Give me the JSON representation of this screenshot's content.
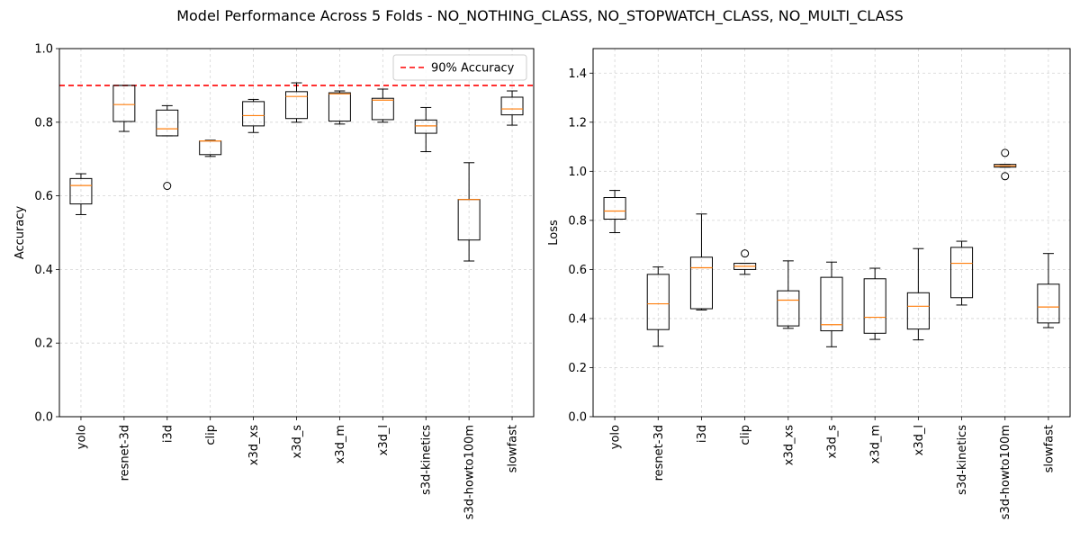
{
  "suptitle": "Model Performance Across 5 Folds - NO_NOTHING_CLASS, NO_STOPWATCH_CLASS, NO_MULTI_CLASS",
  "chart_data": [
    {
      "type": "box",
      "ylabel": "Accuracy",
      "xlabel": "",
      "ylim": [
        0,
        1.0
      ],
      "yticks": [
        0.0,
        0.2,
        0.4,
        0.6,
        0.8,
        1.0
      ],
      "grid": true,
      "legend_position": "upper-right",
      "reference_line": {
        "y": 0.9,
        "label": "90% Accuracy",
        "color": "#ff0000",
        "style": "dashed"
      },
      "categories": [
        "yolo",
        "resnet-3d",
        "i3d",
        "clip",
        "x3d_xs",
        "x3d_s",
        "x3d_m",
        "x3d_l",
        "s3d-kinetics",
        "s3d-howto100m",
        "slowfast"
      ],
      "boxes": [
        {
          "whisker_low": 0.549,
          "q1": 0.578,
          "median": 0.628,
          "q3": 0.647,
          "whisker_high": 0.66,
          "outliers": []
        },
        {
          "whisker_low": 0.775,
          "q1": 0.802,
          "median": 0.848,
          "q3": 0.9,
          "whisker_high": 0.9,
          "outliers": []
        },
        {
          "whisker_low": 0.763,
          "q1": 0.763,
          "median": 0.782,
          "q3": 0.833,
          "whisker_high": 0.845,
          "outliers": [
            0.627
          ]
        },
        {
          "whisker_low": 0.707,
          "q1": 0.712,
          "median": 0.749,
          "q3": 0.749,
          "whisker_high": 0.751,
          "outliers": []
        },
        {
          "whisker_low": 0.772,
          "q1": 0.79,
          "median": 0.818,
          "q3": 0.856,
          "whisker_high": 0.862,
          "outliers": []
        },
        {
          "whisker_low": 0.8,
          "q1": 0.81,
          "median": 0.87,
          "q3": 0.883,
          "whisker_high": 0.907,
          "outliers": []
        },
        {
          "whisker_low": 0.795,
          "q1": 0.803,
          "median": 0.877,
          "q3": 0.88,
          "whisker_high": 0.885,
          "outliers": []
        },
        {
          "whisker_low": 0.8,
          "q1": 0.807,
          "median": 0.86,
          "q3": 0.865,
          "whisker_high": 0.89,
          "outliers": []
        },
        {
          "whisker_low": 0.72,
          "q1": 0.77,
          "median": 0.79,
          "q3": 0.806,
          "whisker_high": 0.84,
          "outliers": []
        },
        {
          "whisker_low": 0.423,
          "q1": 0.48,
          "median": 0.59,
          "q3": 0.59,
          "whisker_high": 0.69,
          "outliers": []
        },
        {
          "whisker_low": 0.792,
          "q1": 0.82,
          "median": 0.836,
          "q3": 0.868,
          "whisker_high": 0.885,
          "outliers": []
        }
      ]
    },
    {
      "type": "box",
      "ylabel": "Loss",
      "xlabel": "",
      "ylim": [
        0,
        1.5
      ],
      "yticks": [
        0.0,
        0.2,
        0.4,
        0.6,
        0.8,
        1.0,
        1.2,
        1.4
      ],
      "grid": true,
      "categories": [
        "yolo",
        "resnet-3d",
        "i3d",
        "clip",
        "x3d_xs",
        "x3d_s",
        "x3d_m",
        "x3d_l",
        "s3d-kinetics",
        "s3d-howto100m",
        "slowfast"
      ],
      "boxes": [
        {
          "whisker_low": 0.75,
          "q1": 0.805,
          "median": 0.838,
          "q3": 0.893,
          "whisker_high": 0.922,
          "outliers": []
        },
        {
          "whisker_low": 0.287,
          "q1": 0.355,
          "median": 0.46,
          "q3": 0.58,
          "whisker_high": 0.61,
          "outliers": []
        },
        {
          "whisker_low": 0.435,
          "q1": 0.44,
          "median": 0.607,
          "q3": 0.65,
          "whisker_high": 0.826,
          "outliers": []
        },
        {
          "whisker_low": 0.58,
          "q1": 0.6,
          "median": 0.613,
          "q3": 0.625,
          "whisker_high": 0.625,
          "outliers": [
            0.665
          ]
        },
        {
          "whisker_low": 0.36,
          "q1": 0.37,
          "median": 0.475,
          "q3": 0.513,
          "whisker_high": 0.635,
          "outliers": []
        },
        {
          "whisker_low": 0.285,
          "q1": 0.35,
          "median": 0.375,
          "q3": 0.568,
          "whisker_high": 0.63,
          "outliers": []
        },
        {
          "whisker_low": 0.315,
          "q1": 0.34,
          "median": 0.405,
          "q3": 0.562,
          "whisker_high": 0.605,
          "outliers": []
        },
        {
          "whisker_low": 0.313,
          "q1": 0.357,
          "median": 0.45,
          "q3": 0.505,
          "whisker_high": 0.685,
          "outliers": []
        },
        {
          "whisker_low": 0.455,
          "q1": 0.485,
          "median": 0.625,
          "q3": 0.69,
          "whisker_high": 0.715,
          "outliers": []
        },
        {
          "whisker_low": 1.017,
          "q1": 1.017,
          "median": 1.022,
          "q3": 1.028,
          "whisker_high": 1.028,
          "outliers": [
            1.075,
            0.98
          ]
        },
        {
          "whisker_low": 0.363,
          "q1": 0.382,
          "median": 0.447,
          "q3": 0.54,
          "whisker_high": 0.665,
          "outliers": []
        }
      ]
    }
  ]
}
